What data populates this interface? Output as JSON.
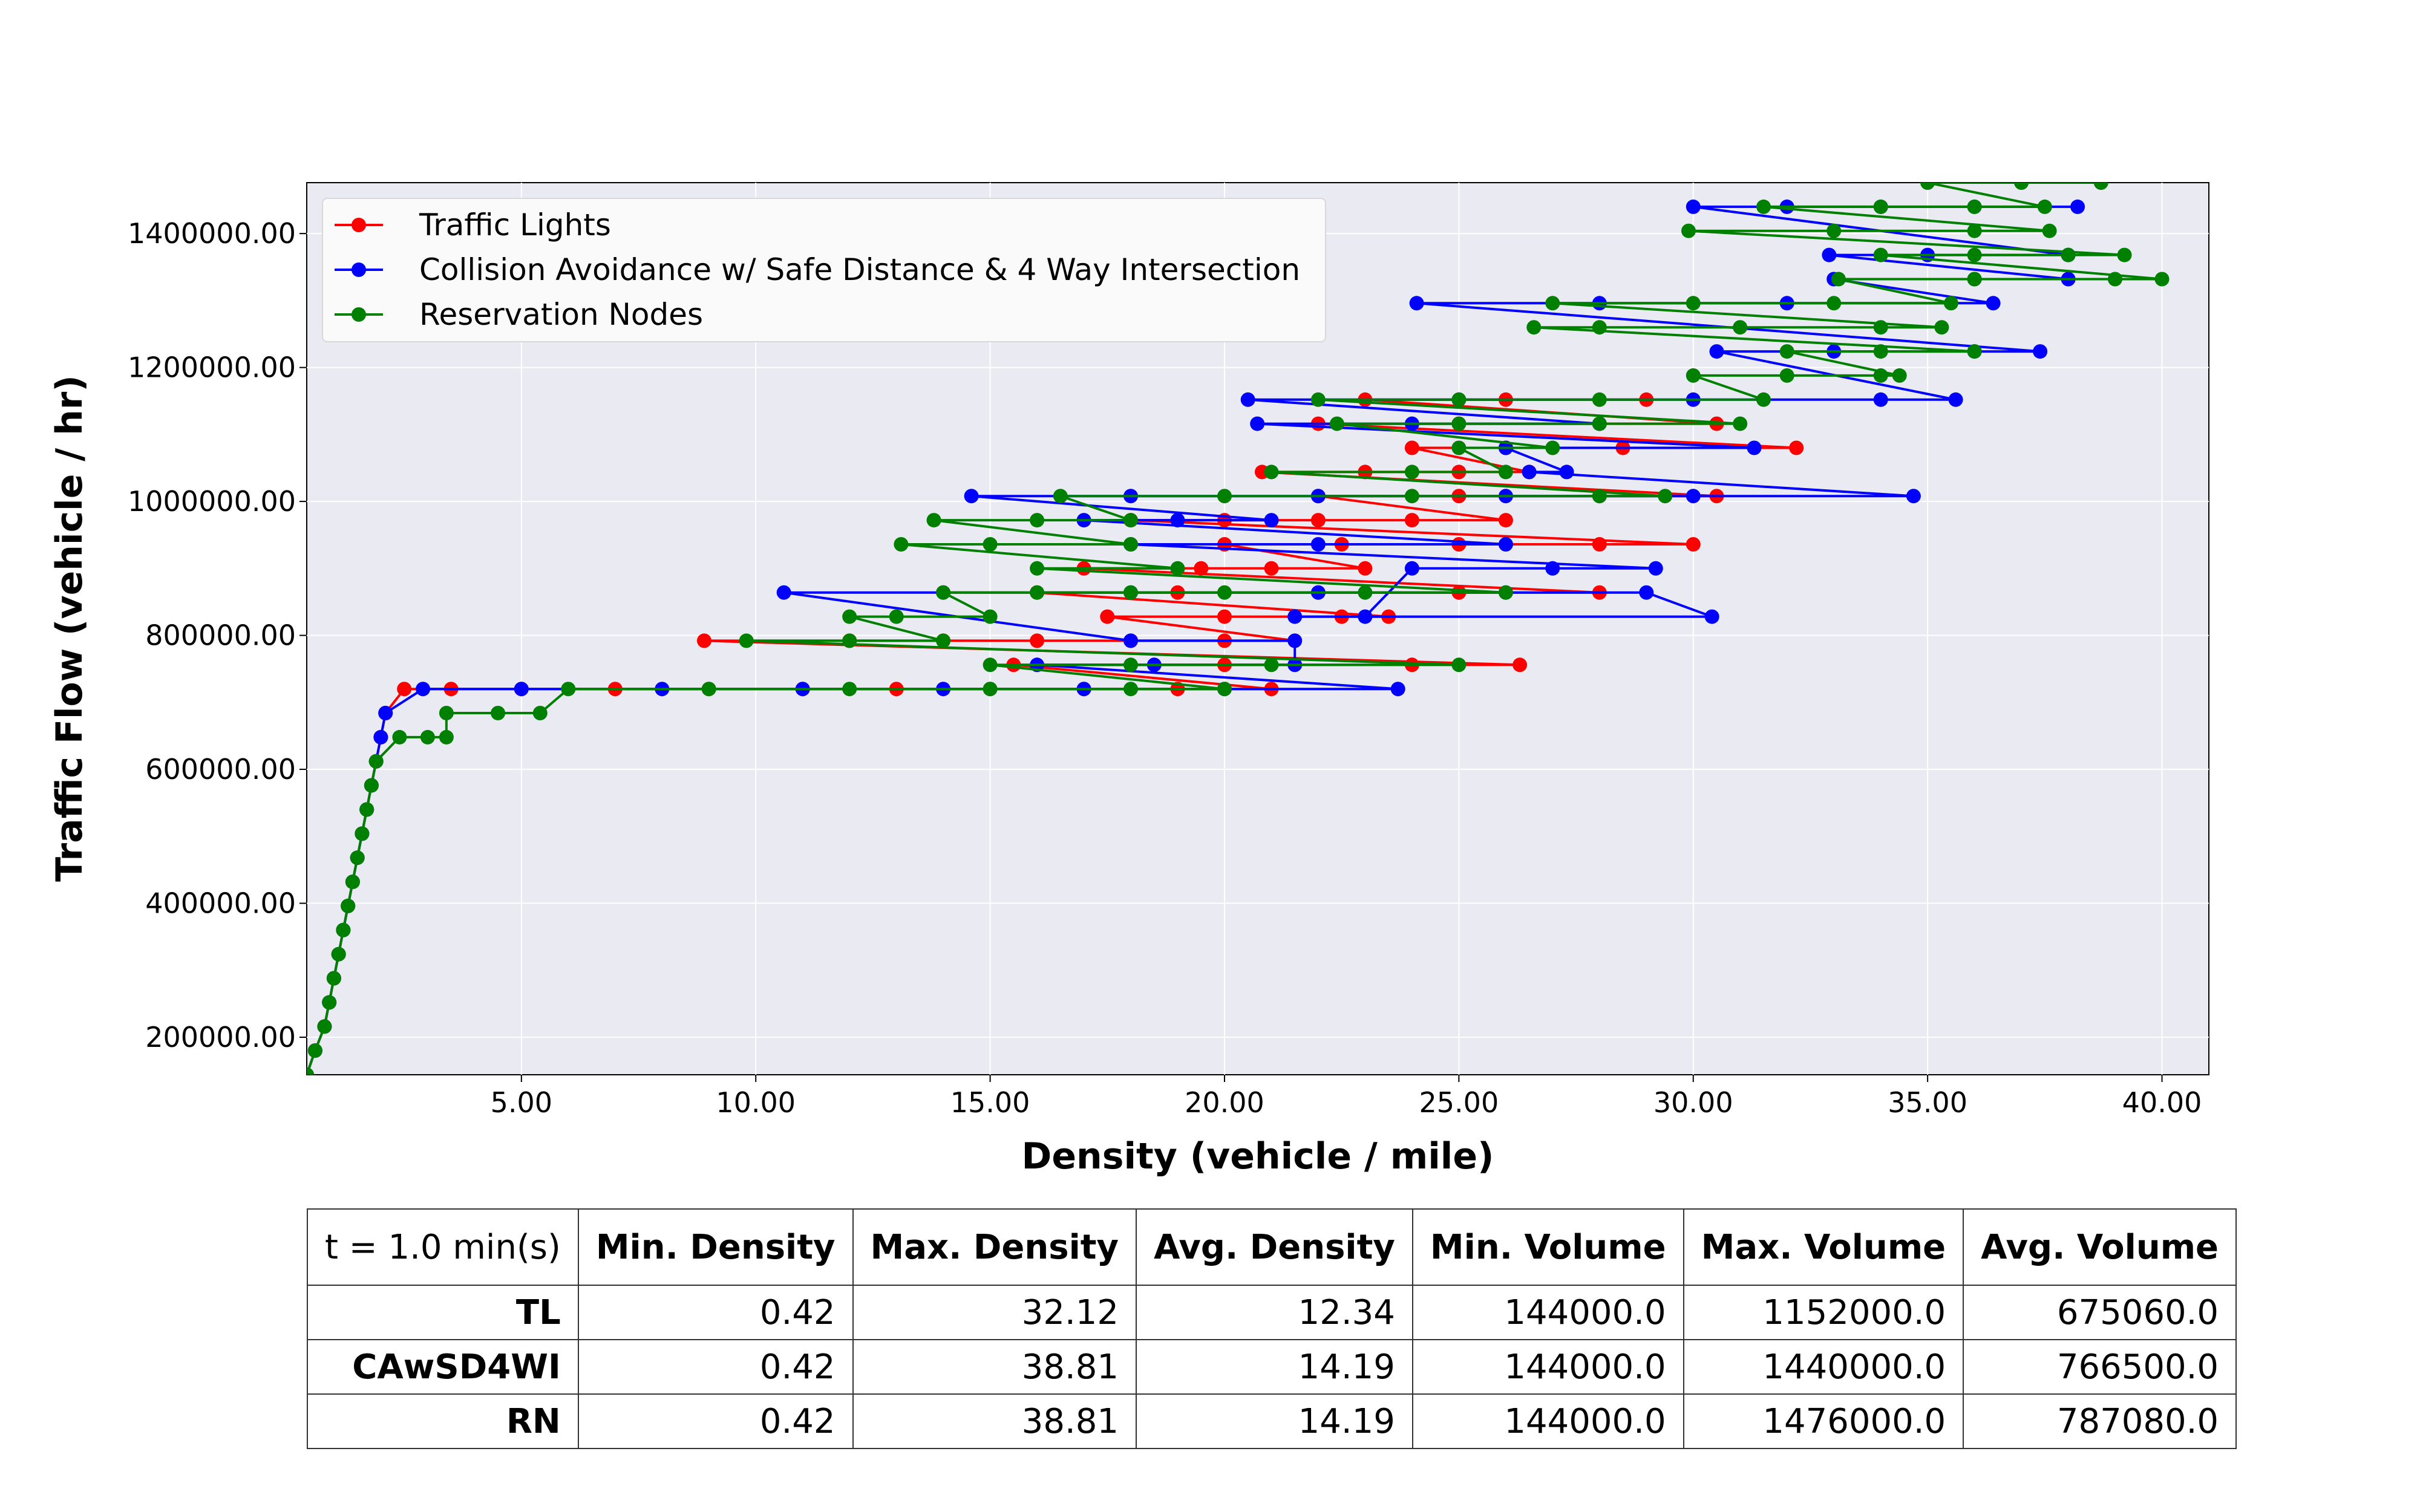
{
  "chart_data": {
    "type": "line",
    "markers": true,
    "xlabel": "Density (vehicle / mile)",
    "ylabel": "Traffic Flow (vehicle / hr)",
    "xlim": [
      0.42,
      41.0
    ],
    "ylim": [
      144000,
      1476000
    ],
    "xticks": [
      5,
      10,
      15,
      20,
      25,
      30,
      35,
      40
    ],
    "yticks": [
      200000,
      400000,
      600000,
      800000,
      1000000,
      1200000,
      1400000
    ],
    "xtick_labels": [
      "5.00",
      "10.00",
      "15.00",
      "20.00",
      "25.00",
      "30.00",
      "35.00",
      "40.00"
    ],
    "ytick_labels": [
      "200000.00",
      "400000.00",
      "600000.00",
      "800000.00",
      "1000000.00",
      "1200000.00",
      "1400000.00"
    ],
    "grid": true,
    "legend_position": "top-left",
    "series": [
      {
        "name": "Traffic Lights",
        "color": "#ff0000",
        "points": [
          [
            0.42,
            144000
          ],
          [
            0.6,
            180000
          ],
          [
            0.8,
            216000
          ],
          [
            0.9,
            252000
          ],
          [
            1.0,
            288000
          ],
          [
            1.1,
            324000
          ],
          [
            1.2,
            360000
          ],
          [
            1.3,
            396000
          ],
          [
            1.4,
            432000
          ],
          [
            1.5,
            468000
          ],
          [
            1.6,
            504000
          ],
          [
            1.7,
            540000
          ],
          [
            1.8,
            576000
          ],
          [
            1.9,
            612000
          ],
          [
            2.0,
            648000
          ],
          [
            2.1,
            684000
          ],
          [
            2.5,
            720000
          ],
          [
            3.5,
            720000
          ],
          [
            5.0,
            720000
          ],
          [
            7.0,
            720000
          ],
          [
            9.0,
            720000
          ],
          [
            11.0,
            720000
          ],
          [
            13.0,
            720000
          ],
          [
            15.0,
            720000
          ],
          [
            17.0,
            720000
          ],
          [
            19.0,
            720000
          ],
          [
            21.0,
            720000
          ],
          [
            15.5,
            756000
          ],
          [
            20.0,
            756000
          ],
          [
            24.0,
            756000
          ],
          [
            26.3,
            756000
          ],
          [
            8.9,
            792000
          ],
          [
            12.0,
            792000
          ],
          [
            14.0,
            792000
          ],
          [
            16.0,
            792000
          ],
          [
            18.0,
            792000
          ],
          [
            20.0,
            792000
          ],
          [
            21.5,
            792000
          ],
          [
            17.5,
            828000
          ],
          [
            20.0,
            828000
          ],
          [
            22.5,
            828000
          ],
          [
            23.5,
            828000
          ],
          [
            16.0,
            864000
          ],
          [
            19.0,
            864000
          ],
          [
            22.0,
            864000
          ],
          [
            25.0,
            864000
          ],
          [
            28.0,
            864000
          ],
          [
            17.0,
            900000
          ],
          [
            19.5,
            900000
          ],
          [
            21.0,
            900000
          ],
          [
            23.0,
            900000
          ],
          [
            20.0,
            936000
          ],
          [
            22.5,
            936000
          ],
          [
            25.0,
            936000
          ],
          [
            28.0,
            936000
          ],
          [
            30.0,
            936000
          ],
          [
            18.0,
            972000
          ],
          [
            20.0,
            972000
          ],
          [
            22.0,
            972000
          ],
          [
            24.0,
            972000
          ],
          [
            26.0,
            972000
          ],
          [
            22.0,
            1008000
          ],
          [
            25.0,
            1008000
          ],
          [
            28.0,
            1008000
          ],
          [
            30.5,
            1008000
          ],
          [
            20.8,
            1044000
          ],
          [
            23.0,
            1044000
          ],
          [
            25.0,
            1044000
          ],
          [
            26.5,
            1044000
          ],
          [
            24.0,
            1080000
          ],
          [
            26.0,
            1080000
          ],
          [
            28.5,
            1080000
          ],
          [
            32.2,
            1080000
          ],
          [
            22.0,
            1116000
          ],
          [
            25.0,
            1116000
          ],
          [
            28.0,
            1116000
          ],
          [
            30.5,
            1116000
          ],
          [
            23.0,
            1152000
          ],
          [
            26.0,
            1152000
          ],
          [
            29.0,
            1152000
          ]
        ]
      },
      {
        "name": "Collision Avoidance w/ Safe Distance & 4 Way Intersection",
        "color": "#0000ff",
        "points": [
          [
            0.42,
            144000
          ],
          [
            0.6,
            180000
          ],
          [
            0.8,
            216000
          ],
          [
            0.9,
            252000
          ],
          [
            1.0,
            288000
          ],
          [
            1.1,
            324000
          ],
          [
            1.2,
            360000
          ],
          [
            1.3,
            396000
          ],
          [
            1.4,
            432000
          ],
          [
            1.5,
            468000
          ],
          [
            1.6,
            504000
          ],
          [
            1.7,
            540000
          ],
          [
            1.8,
            576000
          ],
          [
            1.9,
            612000
          ],
          [
            2.0,
            648000
          ],
          [
            2.1,
            684000
          ],
          [
            2.9,
            720000
          ],
          [
            5.0,
            720000
          ],
          [
            8.0,
            720000
          ],
          [
            11.0,
            720000
          ],
          [
            14.0,
            720000
          ],
          [
            17.0,
            720000
          ],
          [
            20.0,
            720000
          ],
          [
            23.7,
            720000
          ],
          [
            16.0,
            756000
          ],
          [
            18.5,
            756000
          ],
          [
            21.5,
            756000
          ],
          [
            21.5,
            792000
          ],
          [
            18.0,
            792000
          ],
          [
            10.6,
            864000
          ],
          [
            14.0,
            864000
          ],
          [
            18.0,
            864000
          ],
          [
            22.0,
            864000
          ],
          [
            26.0,
            864000
          ],
          [
            29.0,
            864000
          ],
          [
            30.4,
            828000
          ],
          [
            21.5,
            828000
          ],
          [
            23.0,
            828000
          ],
          [
            24.0,
            900000
          ],
          [
            27.0,
            900000
          ],
          [
            29.2,
            900000
          ],
          [
            18.0,
            936000
          ],
          [
            22.0,
            936000
          ],
          [
            26.0,
            936000
          ],
          [
            17.0,
            972000
          ],
          [
            19.0,
            972000
          ],
          [
            21.0,
            972000
          ],
          [
            14.6,
            1008000
          ],
          [
            18.0,
            1008000
          ],
          [
            22.0,
            1008000
          ],
          [
            26.0,
            1008000
          ],
          [
            30.0,
            1008000
          ],
          [
            34.7,
            1008000
          ],
          [
            26.5,
            1044000
          ],
          [
            27.3,
            1044000
          ],
          [
            26.0,
            1080000
          ],
          [
            31.3,
            1080000
          ],
          [
            20.7,
            1116000
          ],
          [
            24.0,
            1116000
          ],
          [
            28.0,
            1116000
          ],
          [
            20.5,
            1152000
          ],
          [
            25.0,
            1152000
          ],
          [
            30.0,
            1152000
          ],
          [
            34.0,
            1152000
          ],
          [
            35.6,
            1152000
          ],
          [
            30.5,
            1224000
          ],
          [
            33.0,
            1224000
          ],
          [
            36.0,
            1224000
          ],
          [
            37.4,
            1224000
          ],
          [
            24.1,
            1296000
          ],
          [
            28.0,
            1296000
          ],
          [
            32.0,
            1296000
          ],
          [
            36.4,
            1296000
          ],
          [
            33.0,
            1332000
          ],
          [
            36.0,
            1332000
          ],
          [
            38.0,
            1332000
          ],
          [
            32.9,
            1368000
          ],
          [
            35.0,
            1368000
          ],
          [
            38.0,
            1368000
          ],
          [
            30.0,
            1440000
          ],
          [
            32.0,
            1440000
          ],
          [
            34.0,
            1440000
          ],
          [
            36.0,
            1440000
          ],
          [
            38.2,
            1440000
          ]
        ]
      },
      {
        "name": "Reservation Nodes",
        "color": "#008000",
        "points": [
          [
            0.42,
            144000
          ],
          [
            0.6,
            180000
          ],
          [
            0.8,
            216000
          ],
          [
            0.9,
            252000
          ],
          [
            1.0,
            288000
          ],
          [
            1.1,
            324000
          ],
          [
            1.2,
            360000
          ],
          [
            1.3,
            396000
          ],
          [
            1.4,
            432000
          ],
          [
            1.5,
            468000
          ],
          [
            1.6,
            504000
          ],
          [
            1.7,
            540000
          ],
          [
            1.8,
            576000
          ],
          [
            1.9,
            612000
          ],
          [
            2.4,
            648000
          ],
          [
            3.0,
            648000
          ],
          [
            3.4,
            648000
          ],
          [
            3.4,
            684000
          ],
          [
            4.5,
            684000
          ],
          [
            5.4,
            684000
          ],
          [
            6.0,
            720000
          ],
          [
            9.0,
            720000
          ],
          [
            12.0,
            720000
          ],
          [
            15.0,
            720000
          ],
          [
            18.0,
            720000
          ],
          [
            20.0,
            720000
          ],
          [
            15.0,
            756000
          ],
          [
            18.0,
            756000
          ],
          [
            21.0,
            756000
          ],
          [
            25.0,
            756000
          ],
          [
            9.8,
            792000
          ],
          [
            12.0,
            792000
          ],
          [
            14.0,
            792000
          ],
          [
            12.0,
            828000
          ],
          [
            13.0,
            828000
          ],
          [
            15.0,
            828000
          ],
          [
            14.0,
            864000
          ],
          [
            16.0,
            864000
          ],
          [
            18.0,
            864000
          ],
          [
            20.0,
            864000
          ],
          [
            23.0,
            864000
          ],
          [
            26.0,
            864000
          ],
          [
            16.0,
            900000
          ],
          [
            19.0,
            900000
          ],
          [
            13.1,
            936000
          ],
          [
            15.0,
            936000
          ],
          [
            18.0,
            936000
          ],
          [
            13.8,
            972000
          ],
          [
            16.0,
            972000
          ],
          [
            18.0,
            972000
          ],
          [
            16.5,
            1008000
          ],
          [
            20.0,
            1008000
          ],
          [
            24.0,
            1008000
          ],
          [
            28.0,
            1008000
          ],
          [
            29.4,
            1008000
          ],
          [
            21.0,
            1044000
          ],
          [
            24.0,
            1044000
          ],
          [
            26.0,
            1044000
          ],
          [
            25.0,
            1080000
          ],
          [
            27.0,
            1080000
          ],
          [
            22.4,
            1116000
          ],
          [
            25.0,
            1116000
          ],
          [
            28.0,
            1116000
          ],
          [
            31.0,
            1116000
          ],
          [
            22.0,
            1152000
          ],
          [
            25.0,
            1152000
          ],
          [
            28.0,
            1152000
          ],
          [
            31.5,
            1152000
          ],
          [
            30.0,
            1188000
          ],
          [
            32.0,
            1188000
          ],
          [
            34.0,
            1188000
          ],
          [
            34.4,
            1188000
          ],
          [
            32.0,
            1224000
          ],
          [
            34.0,
            1224000
          ],
          [
            36.0,
            1224000
          ],
          [
            26.6,
            1260000
          ],
          [
            28.0,
            1260000
          ],
          [
            31.0,
            1260000
          ],
          [
            34.0,
            1260000
          ],
          [
            35.3,
            1260000
          ],
          [
            27.0,
            1296000
          ],
          [
            30.0,
            1296000
          ],
          [
            33.0,
            1296000
          ],
          [
            35.5,
            1296000
          ],
          [
            33.1,
            1332000
          ],
          [
            36.0,
            1332000
          ],
          [
            39.0,
            1332000
          ],
          [
            40.0,
            1332000
          ],
          [
            34.0,
            1368000
          ],
          [
            36.0,
            1368000
          ],
          [
            38.0,
            1368000
          ],
          [
            39.2,
            1368000
          ],
          [
            29.9,
            1404000
          ],
          [
            33.0,
            1404000
          ],
          [
            36.0,
            1404000
          ],
          [
            37.6,
            1404000
          ],
          [
            31.5,
            1440000
          ],
          [
            34.0,
            1440000
          ],
          [
            36.0,
            1440000
          ],
          [
            37.5,
            1440000
          ],
          [
            35.0,
            1476000
          ],
          [
            37.0,
            1476000
          ],
          [
            38.7,
            1476000
          ]
        ]
      }
    ]
  },
  "table": {
    "corner": "t = 1.0 min(s)",
    "columns": [
      "Min. Density",
      "Max. Density",
      "Avg. Density",
      "Min. Volume",
      "Max. Volume",
      "Avg. Volume"
    ],
    "rows": [
      {
        "label": "TL",
        "values": [
          "0.42",
          "32.12",
          "12.34",
          "144000.0",
          "1152000.0",
          "675060.0"
        ]
      },
      {
        "label": "CAwSD4WI",
        "values": [
          "0.42",
          "38.81",
          "14.19",
          "144000.0",
          "1440000.0",
          "766500.0"
        ]
      },
      {
        "label": "RN",
        "values": [
          "0.42",
          "38.81",
          "14.19",
          "144000.0",
          "1476000.0",
          "787080.0"
        ]
      }
    ]
  }
}
